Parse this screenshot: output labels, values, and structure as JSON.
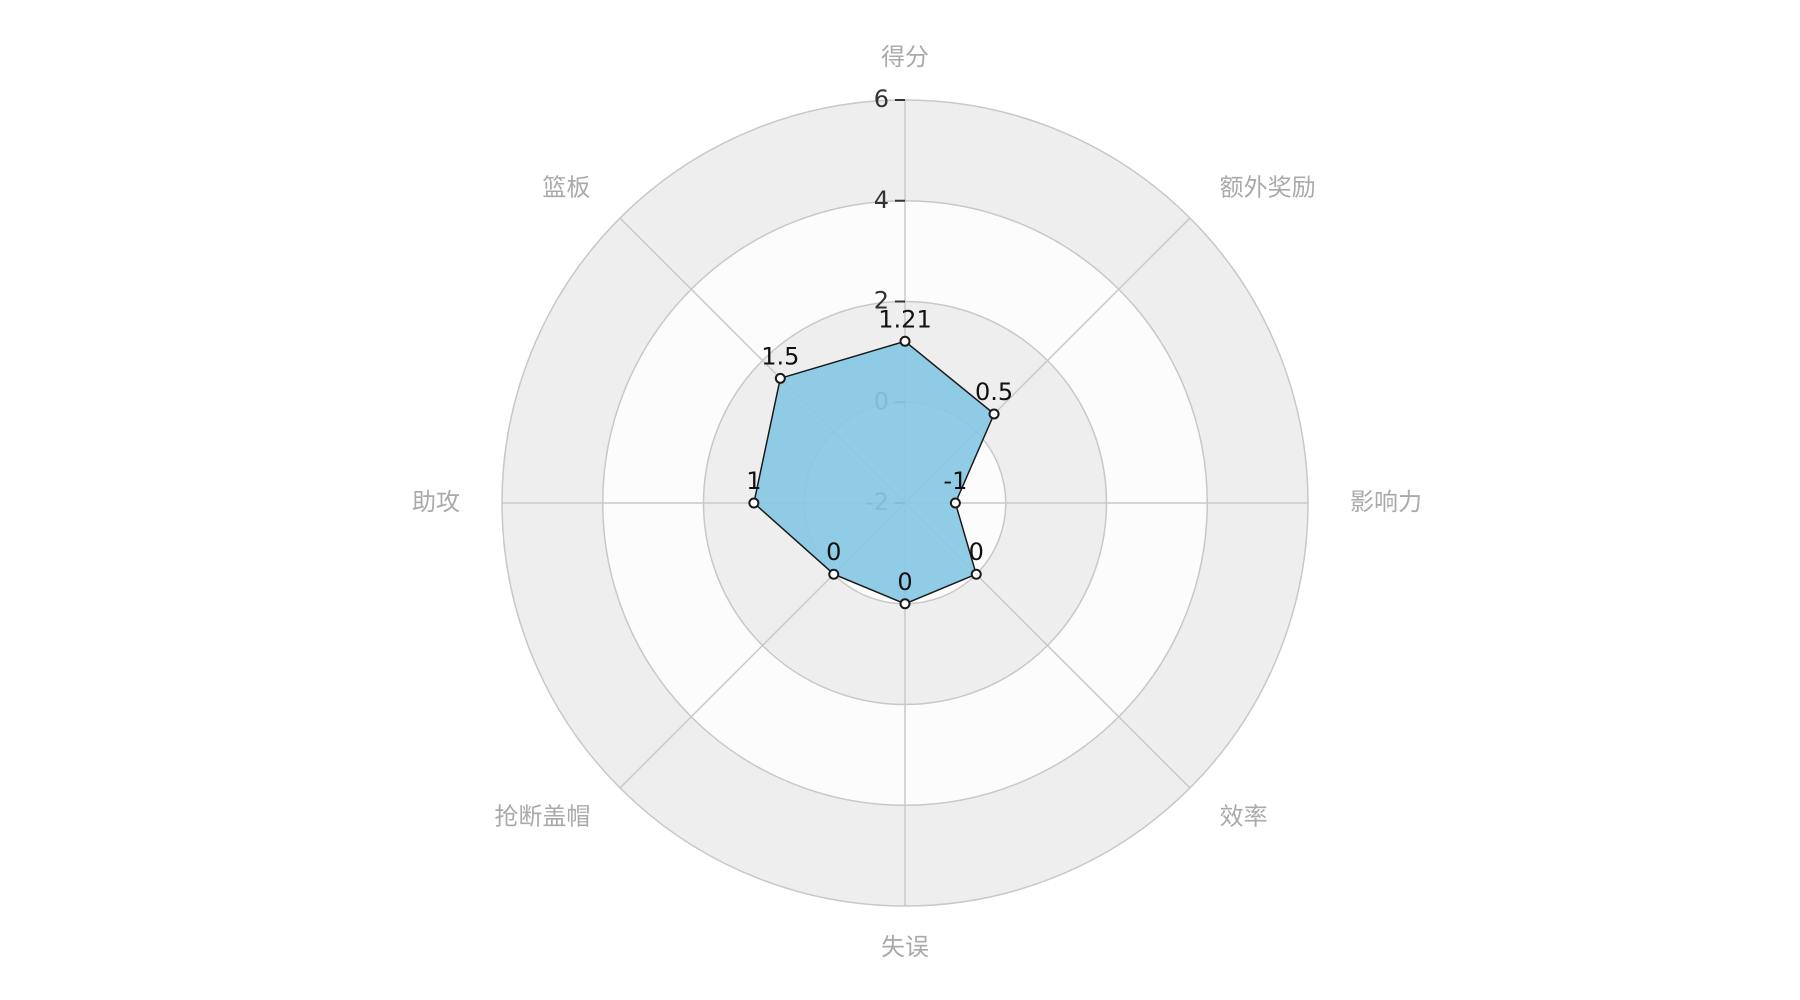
{
  "chart_data": {
    "type": "radar",
    "indicators": [
      "得分",
      "额外奖励",
      "影响力",
      "效率",
      "失误",
      "抢断盖帽",
      "助攻",
      "篮板"
    ],
    "scale": {
      "min": -2,
      "max": 6,
      "ticks": [
        -2,
        0,
        2,
        4,
        6
      ]
    },
    "series": [
      {
        "values": [
          1.21,
          0.5,
          -1,
          0,
          0,
          0,
          1,
          1.5
        ]
      }
    ],
    "value_labels": [
      "1.21",
      "0.5",
      "-1",
      "0",
      "0",
      "0",
      "1",
      "1.5"
    ],
    "tick_labels": [
      "-2",
      "0",
      "2",
      "4",
      "6"
    ],
    "colors": {
      "area_fill": "#87c8e3",
      "area_stroke": "#1a1a1a",
      "ring_dark": "#eeeeee",
      "ring_light": "#fcfcfc",
      "grid_line": "#c8c8c8",
      "axis_name": "#aaaaaa",
      "tick_text": "#333333",
      "value_text": "#111111"
    }
  }
}
